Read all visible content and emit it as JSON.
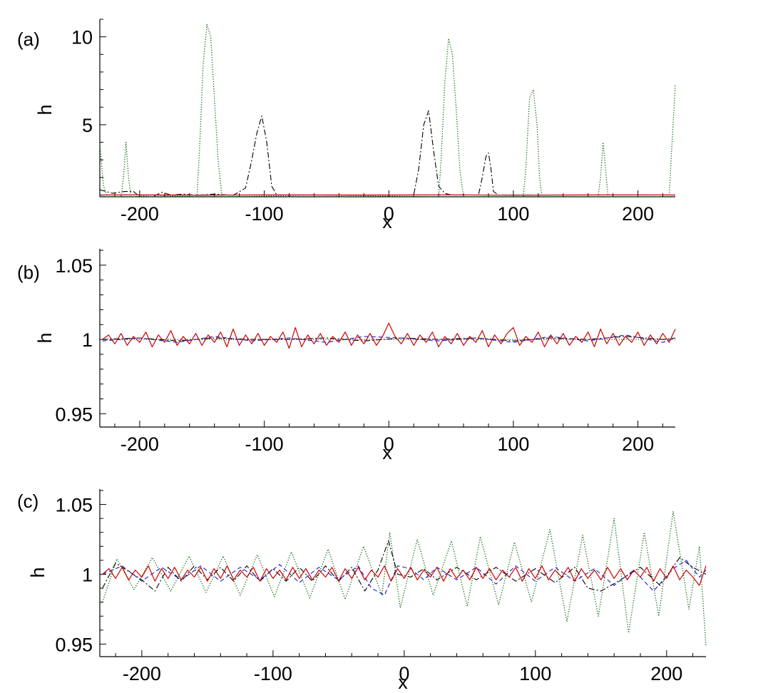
{
  "chart_data": [
    {
      "panel_label": "(a)",
      "type": "line",
      "xlabel": "x",
      "ylabel": "h",
      "xlim": [
        -232,
        230
      ],
      "ylim": [
        0.9,
        11
      ],
      "xticks": [
        -200,
        -100,
        0,
        100,
        200
      ],
      "xtick_labels": [
        "-200",
        "-100",
        "0",
        "100",
        "200"
      ],
      "yticks": [
        5,
        10
      ],
      "ytick_labels": [
        "5",
        "10"
      ],
      "grid": false,
      "series": [
        {
          "style": "red-solid",
          "color": "#cc0000",
          "x": [
            -230,
            -200,
            -150,
            -100,
            -50,
            0,
            50,
            100,
            150,
            200,
            230
          ],
          "y": [
            1.0,
            1.01,
            0.99,
            1.01,
            1.0,
            1.0,
            1.01,
            0.99,
            1.0,
            1.01,
            1.0
          ]
        },
        {
          "style": "blue-dashed",
          "color": "#1a1acc",
          "x": [
            -230,
            -150,
            -50,
            50,
            150,
            230
          ],
          "y": [
            1.0,
            1.0,
            1.0,
            1.0,
            1.0,
            1.0
          ]
        },
        {
          "style": "black-dashdot",
          "color": "#000000",
          "x": [
            -232,
            -222,
            -212,
            -205,
            -200,
            -190,
            -182,
            -175,
            -165,
            -155,
            -140,
            -125,
            -115,
            -110,
            -106,
            -102,
            -98,
            -94,
            -90,
            -40,
            20,
            24,
            28,
            32,
            36,
            40,
            45,
            50,
            72,
            75,
            78,
            80,
            82,
            84,
            88,
            110,
            150,
            200,
            230
          ],
          "y": [
            1.3,
            1.1,
            1.2,
            1.2,
            0.55,
            0.6,
            1.15,
            1.0,
            1.05,
            0.98,
            1.05,
            0.98,
            1.4,
            3.0,
            4.5,
            5.5,
            4.0,
            1.5,
            1.0,
            1.0,
            1.0,
            2.5,
            5.0,
            5.8,
            3.5,
            1.5,
            1.1,
            1.0,
            1.0,
            2.0,
            3.2,
            3.4,
            2.5,
            1.2,
            1.0,
            1.0,
            1.0,
            1.0,
            1.0
          ]
        },
        {
          "style": "green-dotted",
          "color": "#006600",
          "x": [
            -232,
            -229,
            -226,
            -215,
            -213,
            -211,
            -209,
            -207,
            -205,
            -190,
            -154,
            -152,
            -149,
            -146,
            -143,
            -140,
            -137,
            -134,
            -132,
            -60,
            40,
            42,
            45,
            48,
            51,
            54,
            57,
            60,
            62,
            108,
            110,
            113,
            116,
            119,
            121,
            123,
            168,
            170,
            172,
            174,
            176,
            178,
            180,
            225,
            227,
            229,
            230
          ],
          "y": [
            3.9,
            1.5,
            0.6,
            0.6,
            2.0,
            4.0,
            2.0,
            0.6,
            0.6,
            1.0,
            0.6,
            3.5,
            8.5,
            10.7,
            10.0,
            6.5,
            3.0,
            0.6,
            0.6,
            1.0,
            0.6,
            3.0,
            7.5,
            9.9,
            9.0,
            6.0,
            2.5,
            0.6,
            0.6,
            0.6,
            2.5,
            6.5,
            7.0,
            5.0,
            2.0,
            0.6,
            0.6,
            2.0,
            4.0,
            2.5,
            0.6,
            0.6,
            0.6,
            0.6,
            3.5,
            6.0,
            7.3
          ]
        }
      ]
    },
    {
      "panel_label": "(b)",
      "type": "line",
      "xlabel": "x",
      "ylabel": "h",
      "xlim": [
        -232,
        230
      ],
      "ylim": [
        0.941,
        1.061
      ],
      "xticks": [
        -200,
        -100,
        0,
        100,
        200
      ],
      "xtick_labels": [
        "-200",
        "-100",
        "0",
        "100",
        "200"
      ],
      "yticks": [
        0.95,
        1,
        1.05
      ],
      "ytick_labels": [
        "0.95",
        "1",
        "1.05"
      ],
      "grid": false,
      "series": [
        {
          "style": "red-solid",
          "color": "#cc0000",
          "x": [
            -230,
            -225,
            -220,
            -215,
            -210,
            -205,
            -200,
            -195,
            -190,
            -185,
            -180,
            -175,
            -170,
            -165,
            -160,
            -155,
            -150,
            -145,
            -140,
            -135,
            -130,
            -125,
            -120,
            -115,
            -110,
            -105,
            -100,
            -95,
            -90,
            -85,
            -80,
            -75,
            -70,
            -65,
            -60,
            -55,
            -50,
            -45,
            -40,
            -35,
            -30,
            -25,
            -20,
            -15,
            -10,
            -5,
            0,
            5,
            10,
            15,
            20,
            25,
            30,
            35,
            40,
            45,
            50,
            55,
            60,
            65,
            70,
            75,
            80,
            85,
            90,
            95,
            100,
            105,
            110,
            115,
            120,
            125,
            130,
            135,
            140,
            145,
            150,
            155,
            160,
            165,
            170,
            175,
            180,
            185,
            190,
            195,
            200,
            205,
            210,
            215,
            220,
            225,
            230
          ],
          "y": [
            1.0,
            1.003,
            0.997,
            1.004,
            0.996,
            1.002,
            0.998,
            1.005,
            0.995,
            1.003,
            0.998,
            1.006,
            0.996,
            1.002,
            0.997,
            1.004,
            0.996,
            1.003,
            0.998,
            1.005,
            0.995,
            1.007,
            0.996,
            1.003,
            0.997,
            1.004,
            0.996,
            1.002,
            0.998,
            1.005,
            0.994,
            1.008,
            0.995,
            1.003,
            0.997,
            1.004,
            0.996,
            1.002,
            0.998,
            1.005,
            0.996,
            1.003,
            0.997,
            1.004,
            0.996,
            1.002,
            1.011,
            1.002,
            0.997,
            1.004,
            0.996,
            1.003,
            0.998,
            1.005,
            0.995,
            1.002,
            0.997,
            1.004,
            0.996,
            1.002,
            0.998,
            1.006,
            0.995,
            1.003,
            0.997,
            1.004,
            1.008,
            0.996,
            1.002,
            0.998,
            1.005,
            0.995,
            1.003,
            0.997,
            1.004,
            0.996,
            1.002,
            0.998,
            1.005,
            0.995,
            1.007,
            0.997,
            1.004,
            0.996,
            1.002,
            0.998,
            1.005,
            0.996,
            1.003,
            0.997,
            1.004,
            0.998,
            1.007
          ]
        },
        {
          "style": "blue-dashed",
          "color": "#1a1acc",
          "x": [
            -230,
            -200,
            -170,
            -140,
            -110,
            -80,
            -50,
            -20,
            10,
            40,
            70,
            100,
            130,
            160,
            190,
            220,
            230
          ],
          "y": [
            0.999,
            1.001,
            0.998,
            1.002,
            0.999,
            1.001,
            0.998,
            1.002,
            1.001,
            0.999,
            1.001,
            0.998,
            1.002,
            0.999,
            1.003,
            0.998,
            1.001
          ]
        },
        {
          "style": "black-dashdot",
          "color": "#000000",
          "x": [
            -230,
            -200,
            -170,
            -140,
            -110,
            -80,
            -50,
            -20,
            10,
            40,
            70,
            100,
            130,
            160,
            190,
            220,
            230
          ],
          "y": [
            1.0,
            1.001,
            0.999,
            1.001,
            1.0,
            1.0,
            1.001,
            0.999,
            1.001,
            1.0,
            1.001,
            0.999,
            1.001,
            1.0,
            1.002,
            1.0,
            1.001
          ]
        },
        {
          "style": "green-dotted",
          "color": "#006600",
          "x": [
            -230,
            -150,
            -50,
            50,
            150,
            230
          ],
          "y": [
            1.0,
            1.0,
            1.0,
            1.0,
            1.0,
            1.0
          ]
        }
      ]
    },
    {
      "panel_label": "(c)",
      "type": "line",
      "xlabel": "x",
      "ylabel": "h",
      "xlim": [
        -232,
        230
      ],
      "ylim": [
        0.941,
        1.061
      ],
      "xticks": [
        -200,
        -100,
        0,
        100,
        200
      ],
      "xtick_labels": [
        "-200",
        "-100",
        "0",
        "100",
        "200"
      ],
      "yticks": [
        0.95,
        1,
        1.05
      ],
      "ytick_labels": [
        "0.95",
        "1",
        "1.05"
      ],
      "grid": false,
      "series": [
        {
          "style": "red-solid",
          "color": "#cc0000",
          "x": [
            -230,
            -225,
            -220,
            -215,
            -210,
            -205,
            -200,
            -195,
            -190,
            -185,
            -180,
            -175,
            -170,
            -165,
            -160,
            -155,
            -150,
            -145,
            -140,
            -135,
            -130,
            -125,
            -120,
            -115,
            -110,
            -105,
            -100,
            -95,
            -90,
            -85,
            -80,
            -75,
            -70,
            -65,
            -60,
            -55,
            -50,
            -45,
            -40,
            -35,
            -30,
            -25,
            -20,
            -15,
            -10,
            -5,
            0,
            5,
            10,
            15,
            20,
            25,
            30,
            35,
            40,
            45,
            50,
            55,
            60,
            65,
            70,
            75,
            80,
            85,
            90,
            95,
            100,
            105,
            110,
            115,
            120,
            125,
            130,
            135,
            140,
            145,
            150,
            155,
            160,
            165,
            170,
            175,
            180,
            185,
            190,
            195,
            200,
            205,
            210,
            215,
            220,
            225,
            230
          ],
          "y": [
            1.0,
            1.004,
            0.997,
            1.005,
            0.996,
            1.003,
            0.998,
            1.006,
            0.995,
            1.004,
            0.997,
            1.005,
            0.996,
            1.003,
            0.998,
            1.005,
            0.995,
            1.004,
            0.997,
            1.006,
            0.996,
            1.003,
            0.998,
            1.005,
            0.995,
            1.004,
            0.997,
            1.003,
            0.996,
            1.005,
            0.997,
            1.004,
            0.996,
            1.003,
            0.998,
            1.005,
            0.995,
            1.004,
            0.997,
            1.005,
            0.996,
            1.003,
            0.998,
            1.006,
            0.995,
            1.004,
            0.997,
            1.005,
            0.996,
            1.003,
            0.998,
            1.005,
            0.995,
            1.004,
            0.997,
            1.003,
            0.996,
            1.005,
            0.997,
            1.004,
            0.996,
            1.003,
            0.998,
            1.005,
            0.995,
            1.004,
            0.997,
            1.006,
            0.996,
            1.003,
            0.998,
            1.005,
            0.995,
            1.004,
            0.997,
            1.003,
            0.996,
            1.005,
            0.997,
            1.004,
            0.996,
            1.003,
            0.998,
            1.005,
            0.995,
            1.004,
            0.997,
            1.006,
            0.996,
            1.003,
            0.998,
            0.992,
            1.006
          ]
        },
        {
          "style": "blue-dashed",
          "color": "#1a1acc",
          "x": [
            -230,
            -215,
            -200,
            -185,
            -170,
            -155,
            -140,
            -125,
            -110,
            -95,
            -80,
            -65,
            -50,
            -35,
            -25,
            -15,
            -5,
            5,
            15,
            25,
            40,
            55,
            70,
            85,
            100,
            115,
            130,
            145,
            160,
            175,
            190,
            205,
            215,
            225,
            230
          ],
          "y": [
            1.0,
            1.006,
            0.995,
            1.005,
            0.996,
            1.006,
            0.995,
            1.005,
            0.996,
            1.007,
            0.994,
            1.005,
            0.996,
            1.006,
            0.99,
            0.985,
            1.006,
            1.004,
            0.996,
            1.005,
            0.996,
            1.005,
            0.993,
            1.006,
            0.995,
            1.005,
            0.995,
            1.004,
            0.992,
            1.003,
            0.988,
            1.004,
            1.01,
            0.998,
            1.003
          ]
        },
        {
          "style": "black-dashdot",
          "color": "#000000",
          "x": [
            -230,
            -220,
            -210,
            -200,
            -190,
            -180,
            -170,
            -160,
            -150,
            -140,
            -130,
            -120,
            -110,
            -100,
            -90,
            -80,
            -70,
            -60,
            -50,
            -40,
            -30,
            -20,
            -12,
            -5,
            5,
            15,
            25,
            40,
            55,
            70,
            85,
            100,
            115,
            130,
            140,
            150,
            165,
            180,
            195,
            210,
            220,
            230
          ],
          "y": [
            0.99,
            1.008,
            1.002,
            0.996,
            0.988,
            1.005,
            0.995,
            1.006,
            0.996,
            1.005,
            0.995,
            1.006,
            0.995,
            1.004,
            0.995,
            1.005,
            0.995,
            1.006,
            0.995,
            1.005,
            0.988,
            1.003,
            1.024,
            1.0,
            0.998,
            1.004,
            0.996,
            1.005,
            0.996,
            1.005,
            0.995,
            1.004,
            0.994,
            1.005,
            0.99,
            0.988,
            0.996,
            1.005,
            0.992,
            1.012,
            1.005,
            1.0
          ]
        },
        {
          "style": "green-dotted",
          "color": "#006600",
          "x": [
            -230,
            -219,
            -206,
            -192,
            -178,
            -164,
            -151,
            -138,
            -125,
            -112,
            -99,
            -86,
            -72,
            -58,
            -45,
            -31,
            -17,
            -11,
            -3,
            10,
            22,
            36,
            48,
            58,
            72,
            84,
            97,
            111,
            124,
            136,
            148,
            160,
            171,
            183,
            194,
            205,
            217,
            225,
            230
          ],
          "y": [
            0.98,
            1.011,
            0.989,
            1.012,
            0.988,
            1.013,
            0.987,
            1.013,
            0.985,
            1.014,
            0.984,
            1.016,
            0.983,
            1.018,
            0.982,
            1.02,
            0.985,
            1.03,
            0.976,
            1.025,
            0.985,
            1.024,
            0.977,
            1.027,
            0.978,
            1.023,
            0.98,
            1.032,
            0.966,
            1.028,
            0.97,
            1.04,
            0.958,
            1.03,
            0.97,
            1.045,
            0.975,
            1.02,
            0.948
          ]
        }
      ]
    }
  ]
}
